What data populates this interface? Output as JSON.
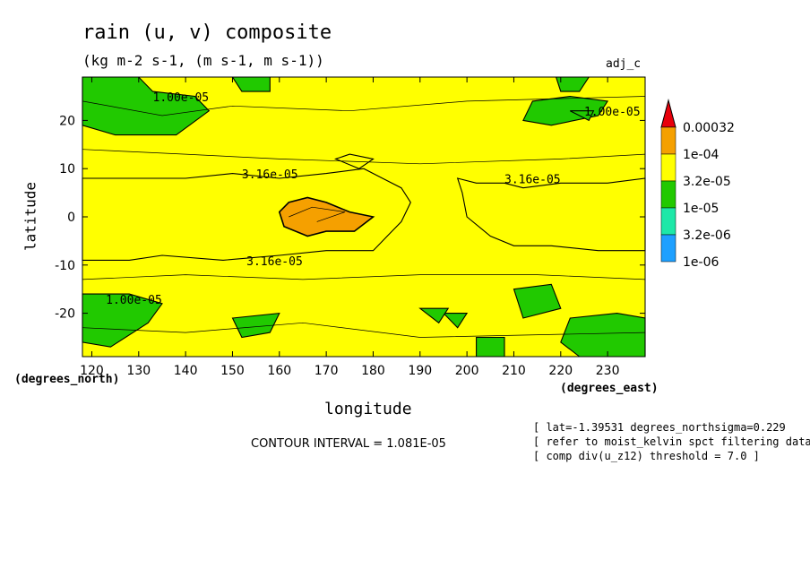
{
  "title": "rain (u, v) composite",
  "subtitle": "(kg m-2 s-1, (m s-1, m s-1))",
  "tag": "adj_c",
  "contour_interval": "CONTOUR INTERVAL = 1.081E-05",
  "notes": [
    "[ lat=-1.39531 degrees_northsigma=0.229",
    "[ refer to moist_kelvin spct filtering data ]",
    "[ comp div(u_z12) threshold = 7.0 ]"
  ],
  "chart_data": {
    "type": "heatmap",
    "xlabel": "longitude",
    "ylabel": "latitude",
    "x_units": "(degrees_east)",
    "y_units": "(degrees_north)",
    "xlim": [
      118,
      238
    ],
    "ylim": [
      -29,
      29
    ],
    "x_ticks": [
      120,
      130,
      140,
      150,
      160,
      170,
      180,
      190,
      200,
      210,
      220,
      230
    ],
    "y_ticks": [
      20,
      10,
      0,
      -10,
      -20
    ],
    "colorbar": {
      "levels": [
        "0.00032",
        "1e-04",
        "3.2e-05",
        "1e-05",
        "3.2e-06",
        "1e-06"
      ],
      "colors": [
        "#e8000b",
        "#f5a000",
        "#ffff00",
        "#21c900",
        "#1de8a8",
        "#1ea0ff"
      ]
    },
    "contour_labels": [
      {
        "text": "1.00e-05",
        "lon": 133,
        "lat": 24
      },
      {
        "text": "1.00e-05",
        "lon": 225,
        "lat": 21
      },
      {
        "text": "3.16e-05",
        "lon": 152,
        "lat": 8
      },
      {
        "text": "3.16e-05",
        "lon": 208,
        "lat": 7
      },
      {
        "text": "3.16e-05",
        "lon": 153,
        "lat": -10
      },
      {
        "text": "1.00e-05",
        "lon": 123,
        "lat": -18
      }
    ],
    "regions": [
      {
        "level": "1e-05",
        "points": [
          [
            118,
            29
          ],
          [
            130,
            29
          ],
          [
            133,
            26
          ],
          [
            142,
            25
          ],
          [
            145,
            22
          ],
          [
            138,
            17
          ],
          [
            125,
            17
          ],
          [
            118,
            19
          ]
        ]
      },
      {
        "level": "1e-05",
        "points": [
          [
            150,
            29
          ],
          [
            158,
            29
          ],
          [
            158,
            26
          ],
          [
            152,
            26
          ]
        ]
      },
      {
        "level": "1e-05",
        "points": [
          [
            214,
            24
          ],
          [
            222,
            25
          ],
          [
            230,
            24
          ],
          [
            228,
            21
          ],
          [
            218,
            19
          ],
          [
            212,
            20
          ]
        ]
      },
      {
        "level": "1e-05",
        "points": [
          [
            219,
            29
          ],
          [
            226,
            29
          ],
          [
            224,
            26
          ],
          [
            220,
            26
          ]
        ]
      },
      {
        "level": "1e-05",
        "points": [
          [
            118,
            -16
          ],
          [
            128,
            -16
          ],
          [
            135,
            -18
          ],
          [
            132,
            -22
          ],
          [
            124,
            -27
          ],
          [
            118,
            -26
          ]
        ]
      },
      {
        "level": "1e-05",
        "points": [
          [
            202,
            -25
          ],
          [
            208,
            -25
          ],
          [
            208,
            -29
          ],
          [
            202,
            -29
          ]
        ]
      },
      {
        "level": "1e-05",
        "points": [
          [
            222,
            -21
          ],
          [
            232,
            -20
          ],
          [
            238,
            -21
          ],
          [
            238,
            -29
          ],
          [
            224,
            -29
          ],
          [
            220,
            -26
          ]
        ]
      },
      {
        "level": "1e-05",
        "points": [
          [
            210,
            -15
          ],
          [
            218,
            -14
          ],
          [
            220,
            -19
          ],
          [
            212,
            -21
          ]
        ]
      },
      {
        "level": "1e-05",
        "points": [
          [
            195,
            -20
          ],
          [
            200,
            -20
          ],
          [
            198,
            -23
          ]
        ]
      },
      {
        "level": "1e-05",
        "points": [
          [
            222,
            22
          ],
          [
            227,
            22
          ],
          [
            226,
            20
          ]
        ]
      },
      {
        "level": "1e-05",
        "points": [
          [
            150,
            -21
          ],
          [
            160,
            -20
          ],
          [
            158,
            -24
          ],
          [
            152,
            -25
          ]
        ]
      },
      {
        "level": "1e-05",
        "points": [
          [
            190,
            -19
          ],
          [
            196,
            -19
          ],
          [
            194,
            -22
          ]
        ]
      },
      {
        "level": "3.2e-05",
        "points": [
          [
            118,
            8
          ],
          [
            128,
            8
          ],
          [
            140,
            8
          ],
          [
            150,
            9
          ],
          [
            160,
            8
          ],
          [
            170,
            9
          ],
          [
            178,
            10
          ],
          [
            182,
            8
          ],
          [
            186,
            6
          ],
          [
            188,
            3
          ],
          [
            186,
            -1
          ],
          [
            183,
            -4
          ],
          [
            180,
            -7
          ],
          [
            170,
            -7
          ],
          [
            160,
            -8
          ],
          [
            148,
            -9
          ],
          [
            135,
            -8
          ],
          [
            128,
            -9
          ],
          [
            118,
            -9
          ]
        ]
      },
      {
        "level": "3.2e-05",
        "points": [
          [
            172,
            12
          ],
          [
            175,
            13
          ],
          [
            180,
            12
          ],
          [
            177,
            10
          ]
        ]
      },
      {
        "level": "3.2e-05",
        "points": [
          [
            198,
            8
          ],
          [
            202,
            7
          ],
          [
            208,
            7
          ],
          [
            212,
            6
          ],
          [
            220,
            7
          ],
          [
            230,
            7
          ],
          [
            238,
            8
          ],
          [
            238,
            -7
          ],
          [
            228,
            -7
          ],
          [
            218,
            -6
          ],
          [
            210,
            -6
          ],
          [
            205,
            -4
          ],
          [
            200,
            0
          ],
          [
            199,
            5
          ]
        ]
      },
      {
        "level": "1e-04",
        "points": [
          [
            160,
            1
          ],
          [
            162,
            3
          ],
          [
            166,
            4
          ],
          [
            170,
            3
          ],
          [
            175,
            1
          ],
          [
            180,
            0
          ],
          [
            176,
            -3
          ],
          [
            170,
            -3
          ],
          [
            166,
            -4
          ],
          [
            161,
            -2
          ]
        ]
      }
    ]
  }
}
